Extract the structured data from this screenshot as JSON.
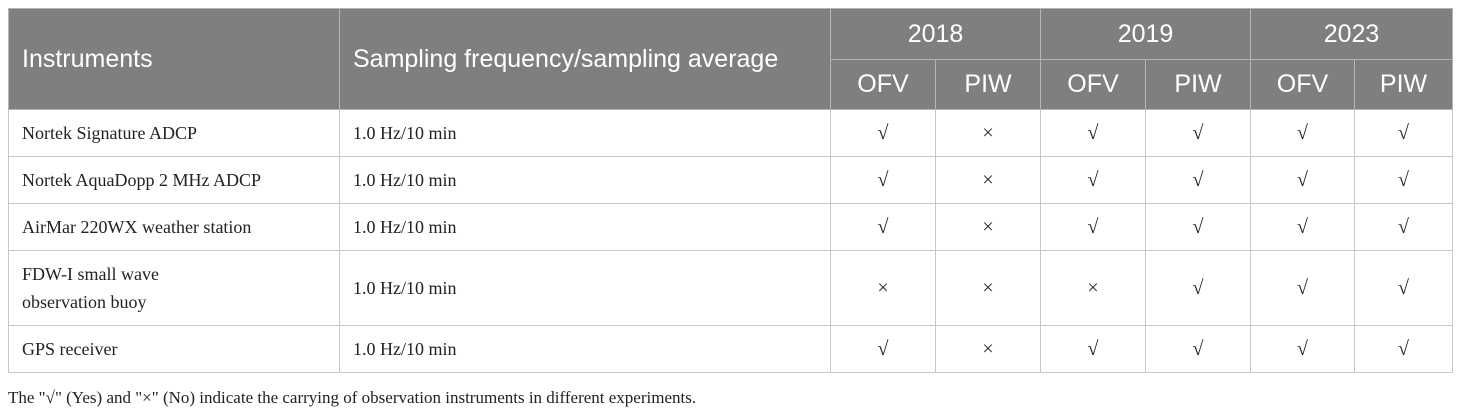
{
  "table": {
    "headers": {
      "instruments": "Instruments",
      "sampling": "Sampling frequency/sampling average",
      "years": [
        "2018",
        "2019",
        "2023"
      ],
      "subcols": [
        "OFV",
        "PIW",
        "OFV",
        "PIW",
        "OFV",
        "PIW"
      ]
    },
    "rows": [
      {
        "instrument": "Nortek Signature ADCP",
        "sampling": "1.0 Hz/10 min",
        "marks": [
          "√",
          "×",
          "√",
          "√",
          "√",
          "√"
        ]
      },
      {
        "instrument": "Nortek AquaDopp 2 MHz ADCP",
        "sampling": "1.0 Hz/10 min",
        "marks": [
          "√",
          "×",
          "√",
          "√",
          "√",
          "√"
        ]
      },
      {
        "instrument": "AirMar 220WX weather station",
        "sampling": "1.0 Hz/10 min",
        "marks": [
          "√",
          "×",
          "√",
          "√",
          "√",
          "√"
        ]
      },
      {
        "instrument_lines": [
          "FDW-I small wave",
          "observation buoy"
        ],
        "sampling": "1.0 Hz/10 min",
        "marks": [
          "×",
          "×",
          "×",
          "√",
          "√",
          "√"
        ]
      },
      {
        "instrument": "GPS receiver",
        "sampling": "1.0 Hz/10 min",
        "marks": [
          "√",
          "×",
          "√",
          "√",
          "√",
          "√"
        ]
      }
    ]
  },
  "footnote": "The \"√\" (Yes) and \"×\" (No) indicate the carrying of observation instruments in different experiments."
}
